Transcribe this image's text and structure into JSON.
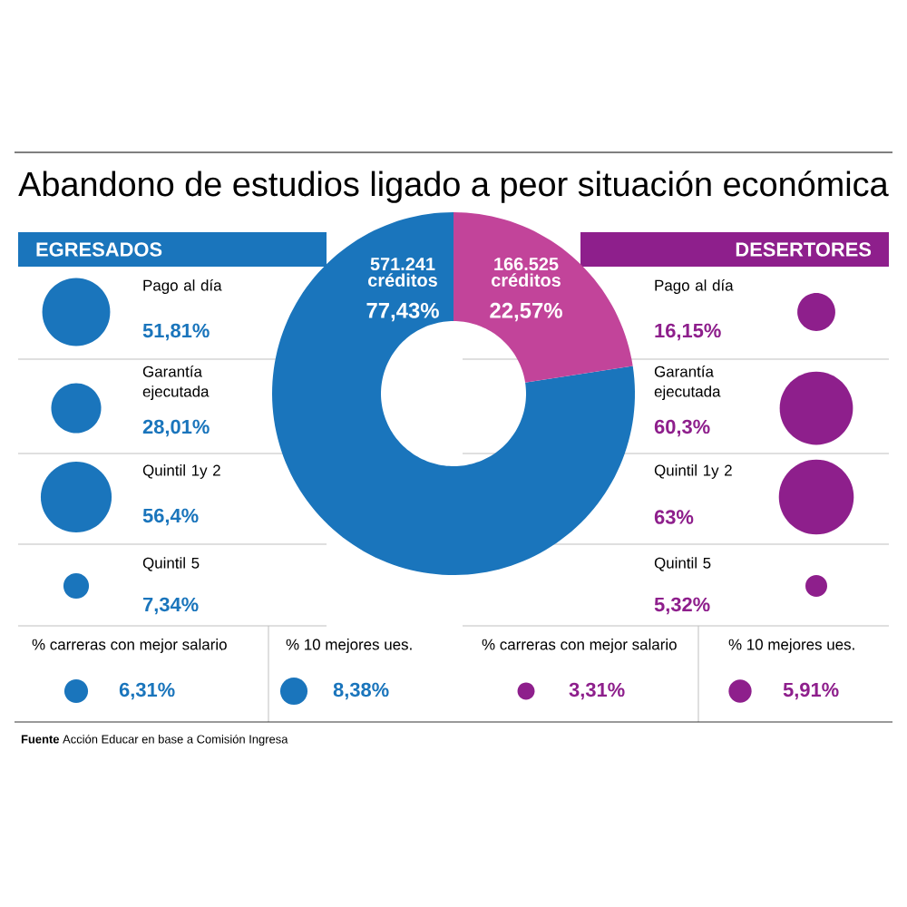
{
  "chart_data": [
    {
      "type": "donut",
      "title": "Abandono de estudios ligado a  peor situación económica",
      "categories": [
        null,
        null
      ],
      "values": [
        77.43,
        22.57
      ],
      "colors": [
        "#1a75bc",
        "#c2449a"
      ],
      "value_labels": [
        "77,43%",
        "22,57%"
      ],
      "annotations": [
        "571.241 créditos",
        "166.525 créditos",
        "**Fuente** Acción Educar en base a Comisión Ingresa"
      ]
    },
    {
      "type": "other",
      "title": "EGRESADOS",
      "categories": [
        "Pago al día",
        "Garantía ejecutada",
        "Quintil 1y 2",
        "Quintil 5",
        "% carreras con mejor salario",
        "% 10 mejores ues."
      ],
      "values": [
        51.81,
        28.01,
        56.4,
        7.34,
        6.31,
        8.38
      ],
      "value_labels": [
        "51,81%",
        "28,01%",
        "56,4%",
        "7,34%",
        "6,31%",
        "8,38%"
      ],
      "color": "#1a75bc"
    },
    {
      "type": "other",
      "title": "DESERTORES",
      "categories": [
        "Pago al día",
        "Garantía ejecutada",
        "Quintil 1y 2",
        "Quintil 5",
        "% carreras con mejor salario",
        "% 10 mejores ues."
      ],
      "values": [
        16.15,
        60.3,
        63,
        5.32,
        3.31,
        5.91
      ],
      "value_labels": [
        "16,15%",
        "60,3%",
        "63%",
        "5,32%",
        "3,31%",
        "5,91%"
      ],
      "color": "#8e1f8c"
    }
  ]
}
